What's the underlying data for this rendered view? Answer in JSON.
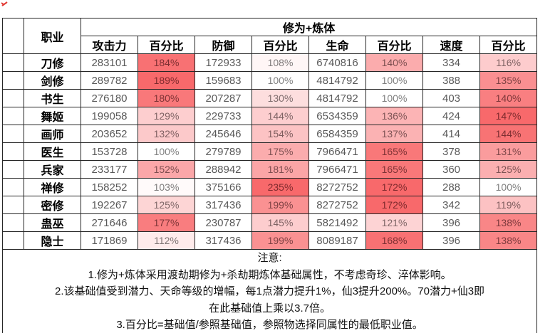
{
  "table": {
    "corner_header": "职业",
    "group_header": "修为+炼体",
    "sub_headers": [
      "攻击力",
      "百分比",
      "防御",
      "百分比",
      "生命",
      "百分比",
      "速度",
      "百分比"
    ],
    "rows": [
      [
        "刀修",
        283101,
        184,
        172933,
        108,
        6740816,
        140,
        334,
        116
      ],
      [
        "剑修",
        289782,
        189,
        159683,
        100,
        4814792,
        100,
        388,
        135
      ],
      [
        "书生",
        276180,
        180,
        207287,
        130,
        4814792,
        100,
        403,
        140
      ],
      [
        "舞姬",
        199058,
        129,
        229733,
        144,
        6534359,
        136,
        424,
        147
      ],
      [
        "画师",
        203652,
        132,
        245646,
        154,
        6584359,
        137,
        414,
        144
      ],
      [
        "医生",
        153728,
        100,
        279789,
        175,
        7966471,
        165,
        378,
        131
      ],
      [
        "兵家",
        233177,
        152,
        288942,
        181,
        7966471,
        165,
        360,
        125
      ],
      [
        "禅修",
        158252,
        103,
        375166,
        235,
        8272752,
        172,
        288,
        100
      ],
      [
        "密修",
        192267,
        125,
        317436,
        199,
        8272752,
        172,
        342,
        119
      ],
      [
        "蛊巫",
        271646,
        177,
        230787,
        145,
        5821492,
        121,
        396,
        138
      ],
      [
        "隐士",
        171869,
        112,
        317436,
        199,
        8089187,
        168,
        396,
        138
      ]
    ],
    "pct_suffix": "%"
  },
  "heat": {
    "min_value": 100,
    "min_color": "#FFFFFF",
    "max_color": "#F8696B",
    "text_color_low": "#7F7F7F",
    "text_color_high": "#7E2A2D"
  },
  "notes": {
    "lines": [
      "注意:",
      "1.修为+炼体采用渡劫期修为+杀劫期炼体基础属性，不考虑奇珍、淬体影响。",
      "2.该基础值受到潜力、天命等级的增幅，每1点潜力提升1%，仙3提升200%。70潜力+仙3即",
      "在此基础值上乘以3.7倍。",
      "3.百分比=基础值/参照基础值，参照物选择同属性的最低职业值。"
    ]
  },
  "decor": {
    "scribble_color": "#e23a34"
  }
}
